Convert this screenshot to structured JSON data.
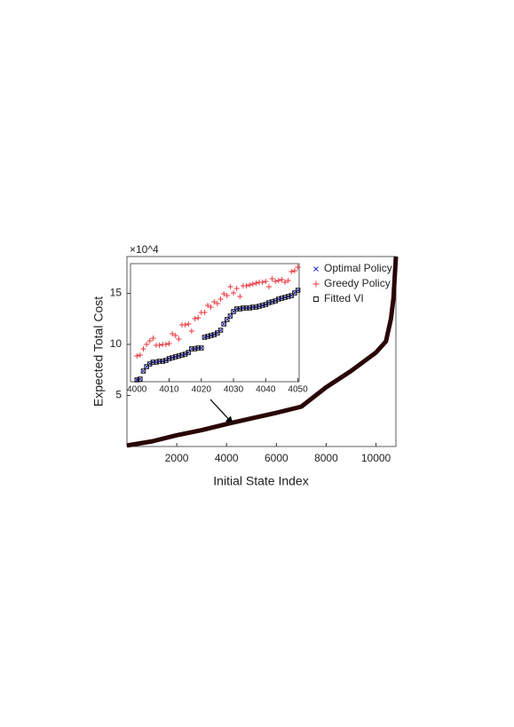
{
  "chart_data": [
    {
      "type": "line",
      "xlabel": "Initial State Index",
      "ylabel": "Expected Total Cost",
      "y_exponent": "×10^4",
      "x": [
        0,
        1000,
        2000,
        3000,
        4000,
        5000,
        6000,
        7000,
        8000,
        9000,
        10000,
        10400,
        10600,
        10700,
        10800
      ],
      "series": [
        {
          "color": "#2a0505",
          "values": [
            0.1,
            0.5,
            1.1,
            1.6,
            2.2,
            2.75,
            3.3,
            3.9,
            5.8,
            7.4,
            9.2,
            10.3,
            12.5,
            14.5,
            18.6
          ]
        }
      ],
      "xlim": [
        0,
        10800
      ],
      "ylim": [
        0,
        18.6
      ],
      "xticks": [
        2000,
        4000,
        6000,
        8000,
        10000
      ],
      "yticks": [
        5,
        10,
        15
      ]
    },
    {
      "type": "scatter",
      "legend": "right",
      "x": [
        4000,
        4001,
        4002,
        4003,
        4004,
        4005,
        4006,
        4007,
        4008,
        4009,
        4010,
        4011,
        4012,
        4013,
        4014,
        4015,
        4016,
        4017,
        4018,
        4019,
        4020,
        4021,
        4022,
        4023,
        4024,
        4025,
        4026,
        4027,
        4028,
        4029,
        4030,
        4031,
        4032,
        4033,
        4034,
        4035,
        4036,
        4037,
        4038,
        4039,
        4040,
        4041,
        4042,
        4043,
        4044,
        4045,
        4046,
        4047,
        4048,
        4049,
        4050
      ],
      "series": [
        {
          "name": "Optimal Policy",
          "color": "#1f1fbf",
          "marker": "x",
          "values": [
            2,
            3,
            12,
            17,
            20,
            22,
            22,
            23,
            23,
            24,
            26,
            27,
            28,
            29,
            30,
            31,
            33,
            37,
            37,
            38,
            38,
            50,
            51,
            52,
            53,
            55,
            58,
            65,
            70,
            74,
            79,
            82,
            82,
            83,
            83,
            83,
            84,
            84,
            85,
            86,
            87,
            89,
            90,
            91,
            93,
            94,
            95,
            96,
            97,
            100,
            103
          ]
        },
        {
          "name": "Greedy Policy",
          "color": "#e8303a",
          "marker": "+",
          "values": [
            29,
            30,
            37,
            42,
            46,
            49,
            41,
            41,
            42,
            42,
            43,
            54,
            52,
            48,
            64,
            64,
            65,
            57,
            71,
            72,
            78,
            78,
            86,
            84,
            90,
            88,
            93,
            99,
            97,
            107,
            100,
            105,
            96,
            108,
            108,
            109,
            110,
            111,
            112,
            112,
            113,
            107,
            116,
            113,
            114,
            115,
            112,
            114,
            124,
            125,
            129
          ]
        },
        {
          "name": "Fitted VI",
          "color": "#111111",
          "marker": "square",
          "values": [
            2,
            3,
            12,
            17,
            20,
            22,
            22,
            23,
            23,
            24,
            26,
            27,
            28,
            29,
            30,
            31,
            33,
            37,
            37,
            38,
            38,
            50,
            51,
            52,
            53,
            55,
            58,
            65,
            70,
            74,
            79,
            82,
            82,
            83,
            83,
            83,
            84,
            84,
            85,
            86,
            87,
            89,
            90,
            91,
            93,
            94,
            95,
            96,
            97,
            100,
            103
          ]
        }
      ],
      "xlim": [
        3998,
        4050.4
      ],
      "ylim": [
        0,
        133
      ],
      "xticks": [
        4000,
        4010,
        4020,
        4030,
        4040,
        4050
      ]
    }
  ]
}
